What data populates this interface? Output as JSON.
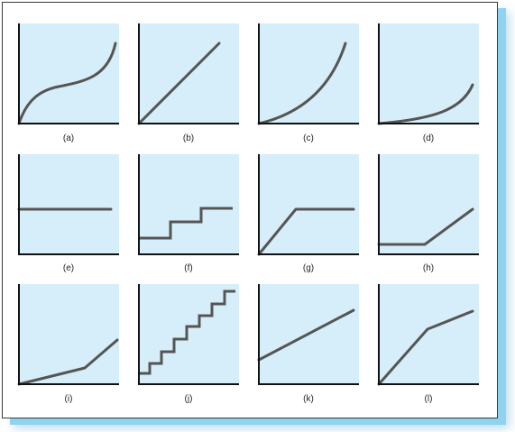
{
  "colors": {
    "panel_fill": "#d6eef9",
    "axis": "#111111",
    "curve": "#555555",
    "frame_shadow": "#8fd3f0"
  },
  "panels": [
    {
      "label": "(a)",
      "curve": "cubic-s-shaped"
    },
    {
      "label": "(b)",
      "curve": "straight-line-from-origin"
    },
    {
      "label": "(c)",
      "curve": "increasing-convex"
    },
    {
      "label": "(d)",
      "curve": "flat-then-rising-convex"
    },
    {
      "label": "(e)",
      "curve": "horizontal-line"
    },
    {
      "label": "(f)",
      "curve": "step-function"
    },
    {
      "label": "(g)",
      "curve": "rising-then-flat"
    },
    {
      "label": "(h)",
      "curve": "flat-then-rising"
    },
    {
      "label": "(i)",
      "curve": "kinked-increasing"
    },
    {
      "label": "(j)",
      "curve": "staircase"
    },
    {
      "label": "(k)",
      "curve": "line-with-positive-intercept"
    },
    {
      "label": "(l)",
      "curve": "rising-then-slower-rise"
    }
  ]
}
